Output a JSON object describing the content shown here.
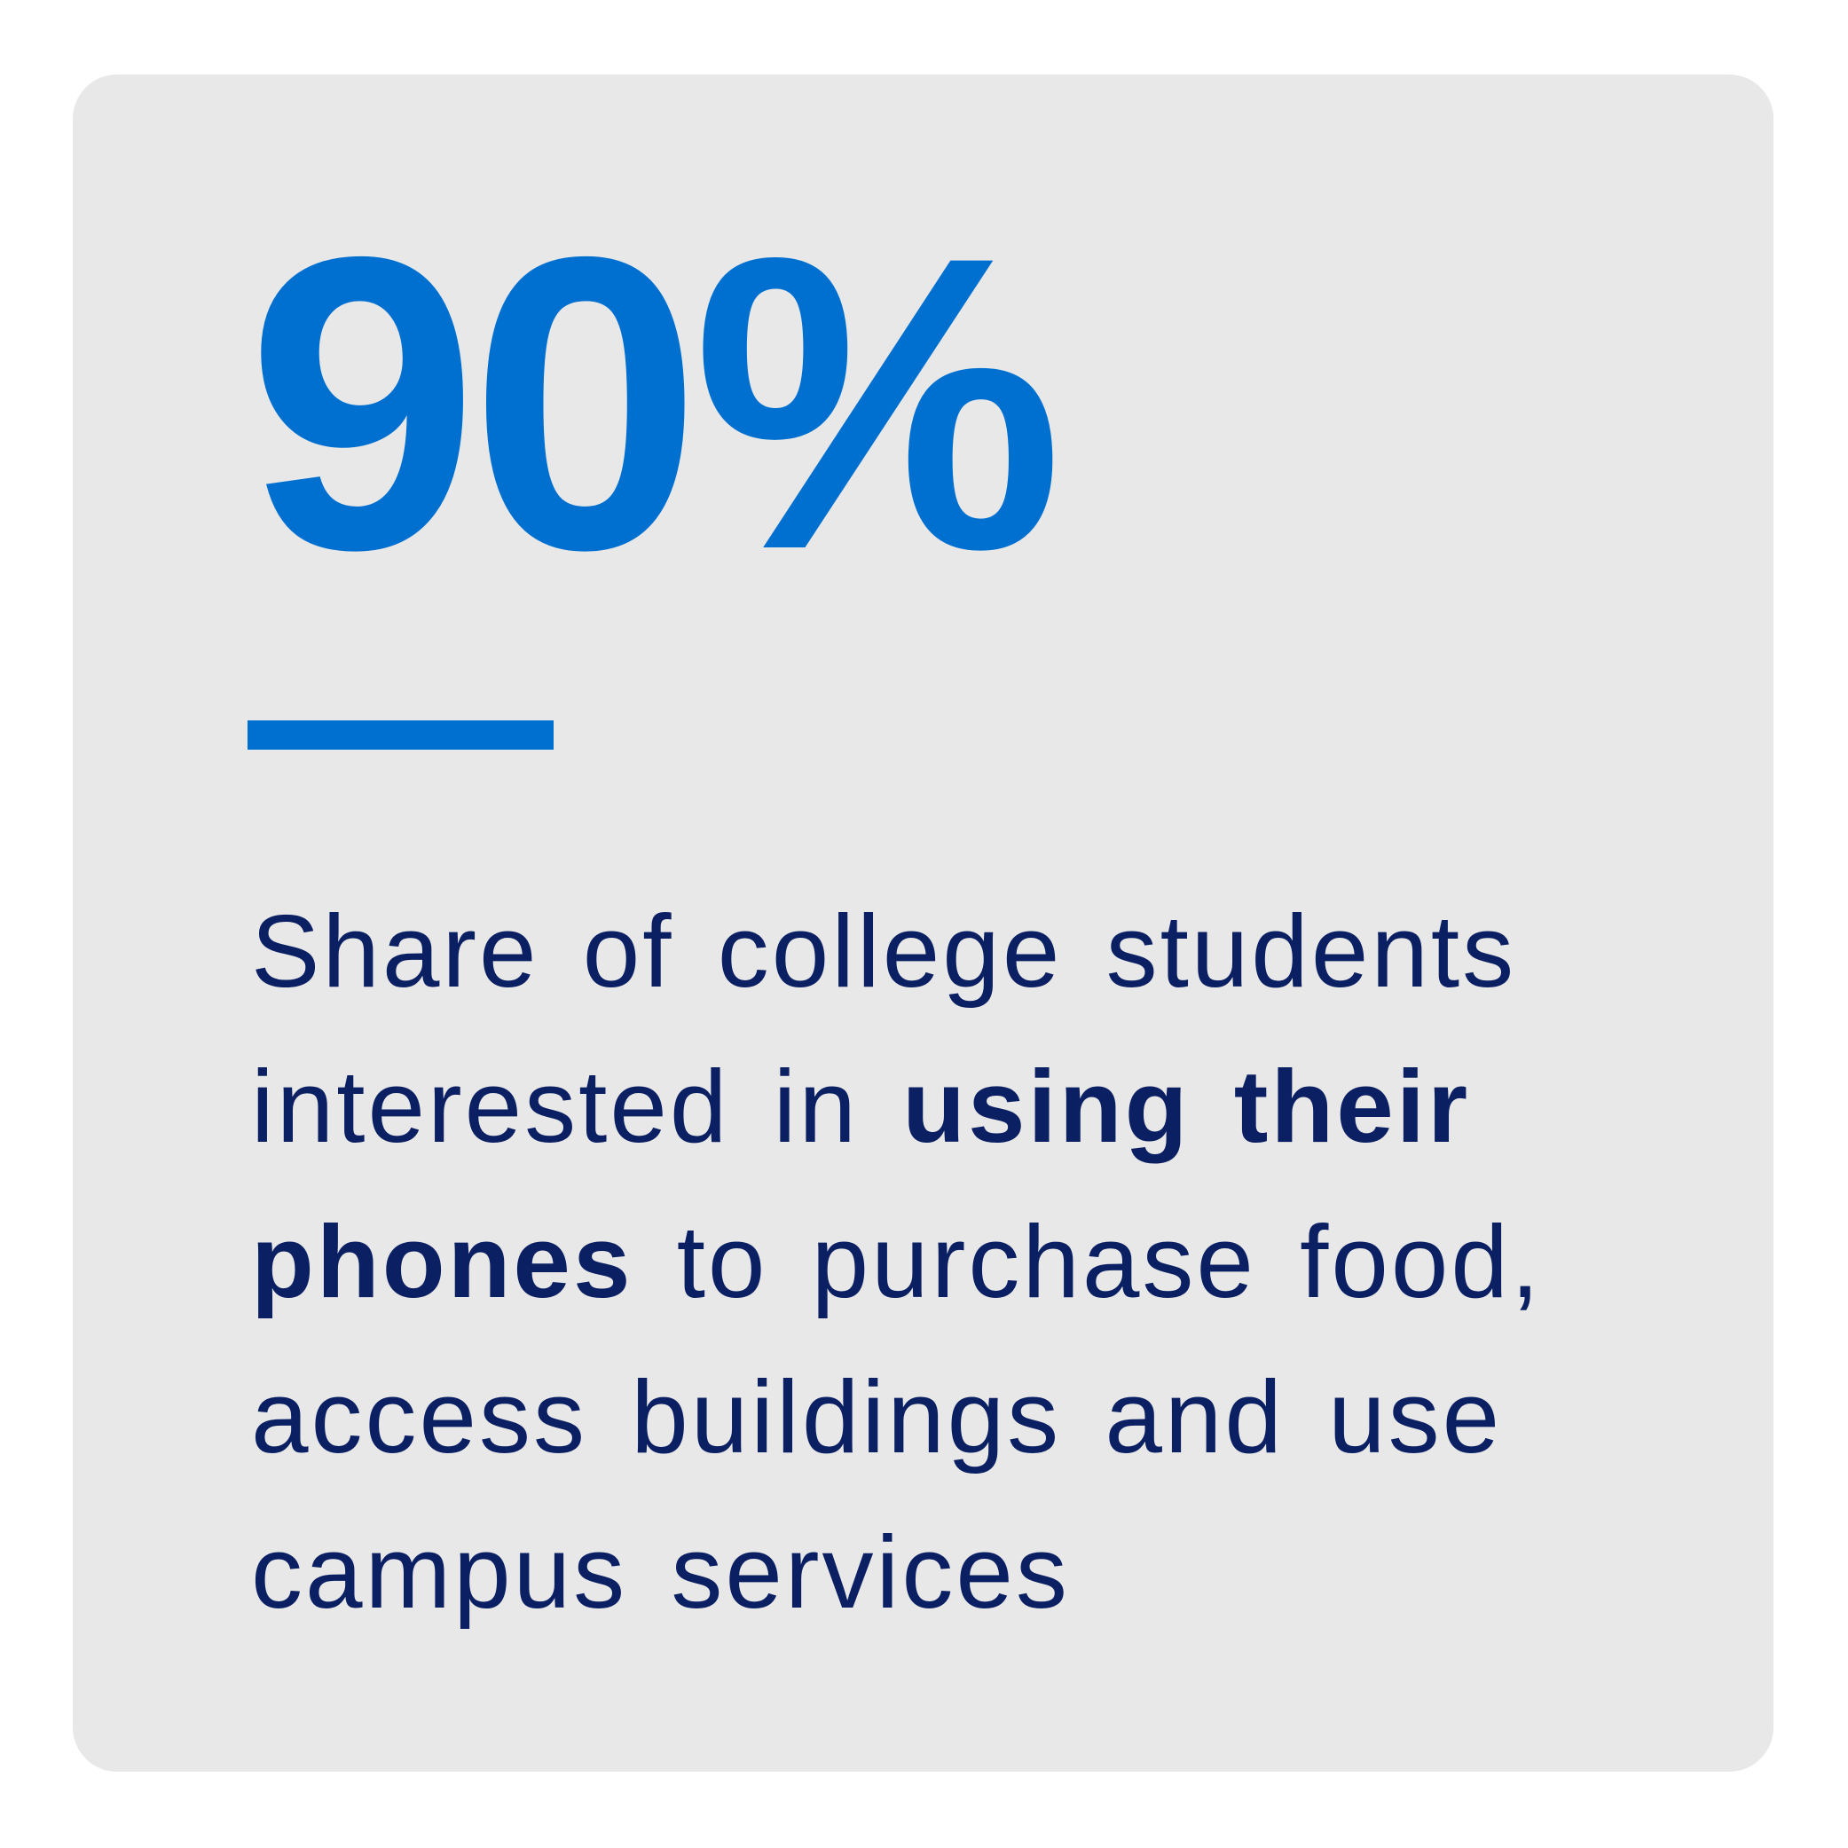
{
  "stat": {
    "value": "90%"
  },
  "description": {
    "before": "Share of college students interested in ",
    "emphasis": "using their phones",
    "after": " to purchase food, access buildings and use campus services"
  },
  "colors": {
    "accent": "#0070d0",
    "text": "#0b1f63",
    "card_background": "#e8e8e8"
  }
}
